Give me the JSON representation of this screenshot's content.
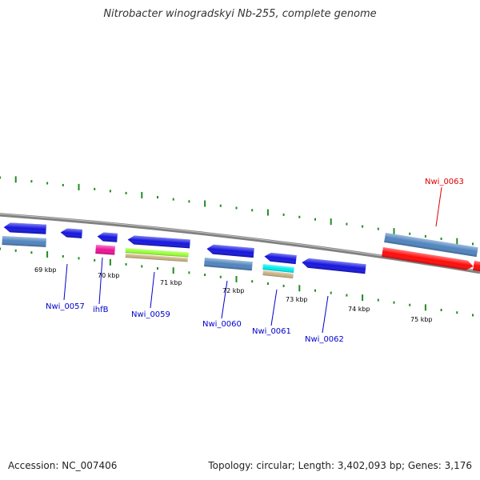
{
  "title": "Nitrobacter winogradskyi Nb-255, complete genome",
  "footer": {
    "accession": "Accession: NC_007406",
    "topology": "Topology: circular",
    "length": "Length: 3,402,093 bp",
    "genes": "Genes: 3,176"
  },
  "colors": {
    "backbone": "#808080",
    "tick": "#228B22",
    "blue": "#1515e0",
    "steel": "#4f84bf",
    "red": "#ff0a0a",
    "magenta": "#ee1199",
    "lime": "#99ff33",
    "tan": "#c9b07f",
    "cyan": "#00eeee",
    "label_blue": "#0000cc",
    "label_red": "#dd0000"
  },
  "scale_labels": [
    "69 kbp",
    "70 kbp",
    "71 kbp",
    "72 kbp",
    "73 kbp",
    "74 kbp",
    "75 kbp"
  ],
  "gene_labels": [
    {
      "text": "Nwi_0057",
      "color": "label_blue"
    },
    {
      "text": "ihfB",
      "color": "label_blue"
    },
    {
      "text": "Nwi_0059",
      "color": "label_blue"
    },
    {
      "text": "Nwi_0060",
      "color": "label_blue"
    },
    {
      "text": "Nwi_0061",
      "color": "label_blue"
    },
    {
      "text": "Nwi_0062",
      "color": "label_blue"
    },
    {
      "text": "Nwi_0063",
      "color": "label_red"
    }
  ]
}
